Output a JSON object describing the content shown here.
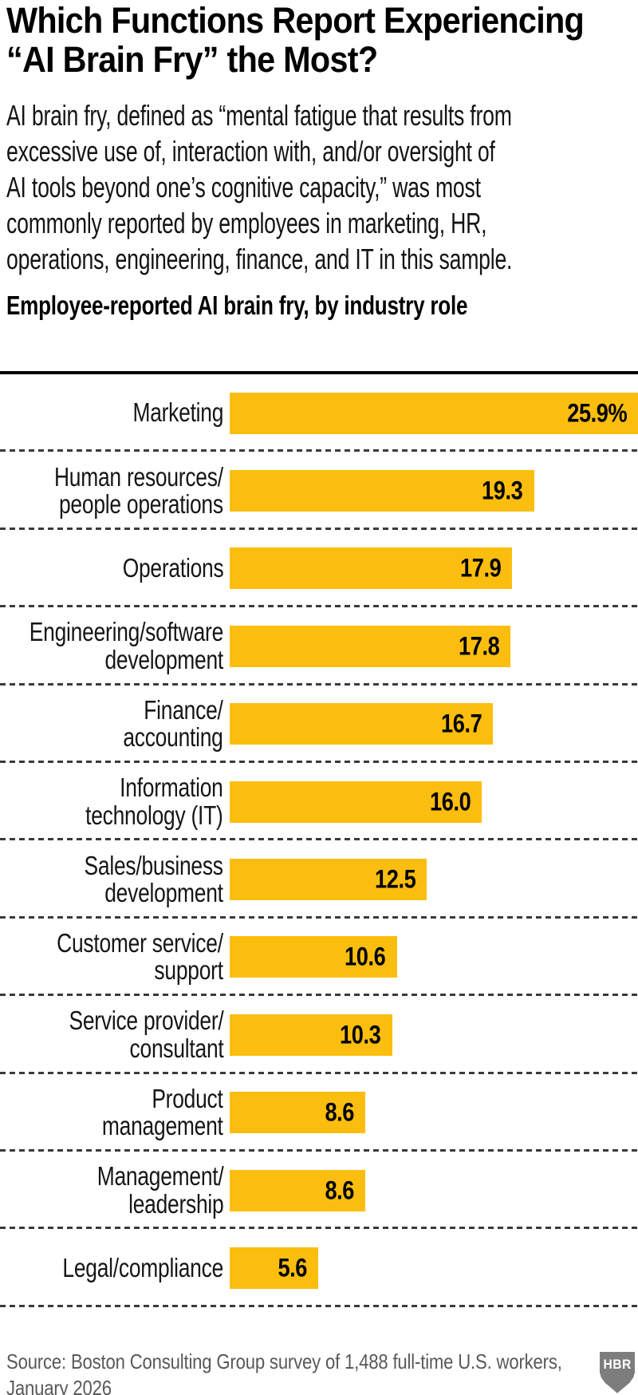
{
  "header": {
    "title": "Which Functions Report Experiencing\n“AI Brain Fry” the Most?",
    "intro": "AI brain fry, defined as “mental fatigue that results from\nexcessive use of, interaction with, and/or oversight of\nAI tools beyond one’s cognitive capacity,” was most\ncommonly reported by employees in marketing, HR,\noperations, engineering, finance, and IT in this sample.",
    "subtitle": "Employee-reported AI brain fry, by industry role"
  },
  "chart_data": {
    "type": "bar",
    "orientation": "horizontal",
    "title": "Employee-reported AI brain fry, by industry role",
    "unit": "percent",
    "xlim": [
      0,
      25.9
    ],
    "grid": "dashed row separators",
    "bar_color": "#FCBE0E",
    "categories": [
      "Marketing",
      "Human resources/\npeople operations",
      "Operations",
      "Engineering/software\ndevelopment",
      "Finance/\naccounting",
      "Information\ntechnology (IT)",
      "Sales/business\ndevelopment",
      "Customer service/\nsupport",
      "Service provider/\nconsultant",
      "Product\nmanagement",
      "Management/\nleadership",
      "Legal/compliance"
    ],
    "values": [
      25.9,
      19.3,
      17.9,
      17.8,
      16.7,
      16.0,
      12.5,
      10.6,
      10.3,
      8.6,
      8.6,
      5.6
    ],
    "value_labels": [
      "25.9%",
      "19.3",
      "17.9",
      "17.8",
      "16.7",
      "16.0",
      "12.5",
      "10.6",
      "10.3",
      "8.6",
      "8.6",
      "5.6"
    ]
  },
  "footer": {
    "source": "Source: Boston Consulting Group survey of 1,488 full-time U.S. workers,\nJanuary 2026",
    "logo_text": "HBR"
  },
  "colors": {
    "bar": "#FCBE0E",
    "background": "#FFFFFF",
    "text": "#111111",
    "source_text": "#595959",
    "logo_shield": "#7D7D7D",
    "separator": "#3A3A3A"
  }
}
